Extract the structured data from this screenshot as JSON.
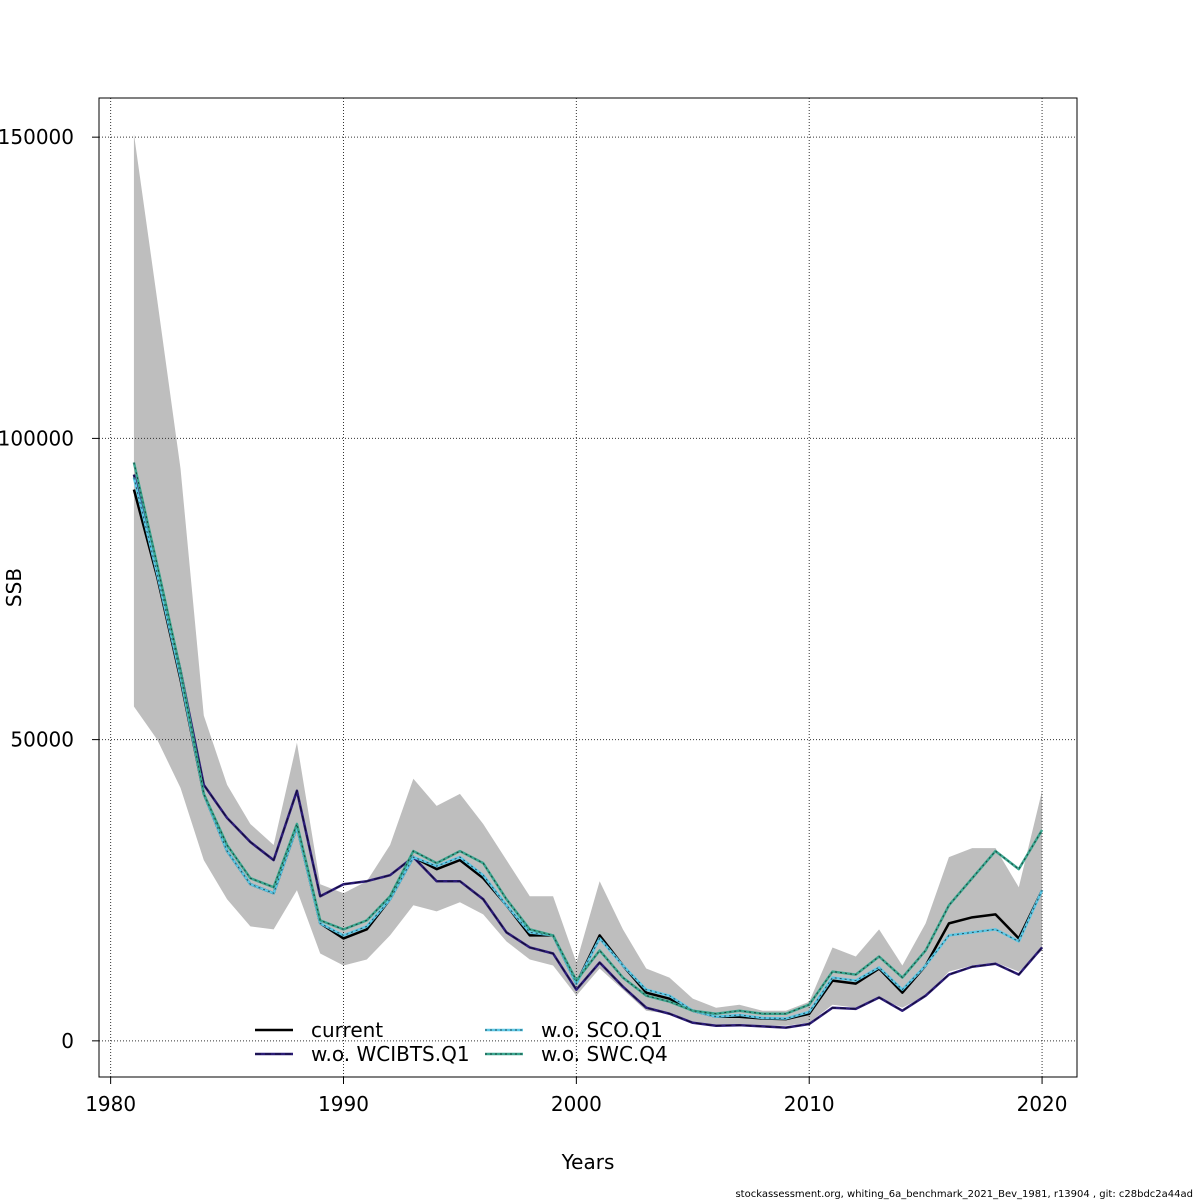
{
  "chart_data": {
    "type": "line",
    "xlabel": "Years",
    "ylabel": "SSB",
    "xlim": [
      1979.5,
      2021.5
    ],
    "ylim": [
      -6000,
      156500
    ],
    "x_ticks": [
      1980,
      1990,
      2000,
      2010,
      2020
    ],
    "x_tick_labels": [
      "1980",
      "1990",
      "2000",
      "2010",
      "2020"
    ],
    "y_ticks": [
      0,
      50000,
      100000,
      150000
    ],
    "y_tick_labels": [
      "0",
      "50000",
      "100000",
      "150000"
    ],
    "grid": true,
    "legend_position": "bottom-left",
    "x": [
      1981,
      1982,
      1983,
      1984,
      1985,
      1986,
      1987,
      1988,
      1989,
      1990,
      1991,
      1992,
      1993,
      1994,
      1995,
      1996,
      1997,
      1998,
      1999,
      2000,
      2001,
      2002,
      2003,
      2004,
      2005,
      2006,
      2007,
      2008,
      2009,
      2010,
      2011,
      2012,
      2013,
      2014,
      2015,
      2016,
      2017,
      2018,
      2019,
      2020
    ],
    "confidence_band": {
      "color": "#bebebe",
      "upper": [
        150500,
        123000,
        95000,
        54000,
        42500,
        36000,
        32500,
        49500,
        26000,
        24500,
        26500,
        32500,
        43500,
        39000,
        41000,
        36000,
        30000,
        24000,
        24000,
        13000,
        26500,
        18500,
        12000,
        10500,
        7000,
        5500,
        6000,
        5000,
        5000,
        6500,
        15500,
        14000,
        18500,
        12500,
        19500,
        30500,
        32000,
        32000,
        25500,
        41500
      ],
      "lower": [
        55500,
        50000,
        42000,
        30000,
        23500,
        19000,
        18500,
        25000,
        14500,
        12500,
        13500,
        17500,
        22500,
        21500,
        23000,
        21000,
        16500,
        13500,
        12500,
        7500,
        12000,
        8500,
        5000,
        4500,
        3000,
        2500,
        2500,
        2500,
        2500,
        3000,
        6000,
        5500,
        7000,
        5500,
        7500,
        11500,
        12500,
        13000,
        11500,
        15000
      ]
    },
    "series": [
      {
        "name": "current",
        "color": "#000000",
        "dash": "solid",
        "values": [
          91500,
          77000,
          60000,
          41000,
          31500,
          26000,
          24500,
          35500,
          19500,
          17000,
          18500,
          23500,
          30500,
          28500,
          30000,
          27000,
          22500,
          17500,
          17500,
          9500,
          17500,
          12500,
          8000,
          7000,
          5000,
          4000,
          4000,
          3700,
          3600,
          4500,
          10000,
          9500,
          12000,
          8000,
          12500,
          19500,
          20500,
          21000,
          17000,
          25000
        ]
      },
      {
        "name": "w.o. WCIBTS.Q1",
        "color": "#2c1c78",
        "dash": "dashed",
        "values": [
          94000,
          78000,
          61500,
          42500,
          37000,
          33000,
          30000,
          41500,
          24000,
          26000,
          26500,
          27500,
          30500,
          26500,
          26500,
          23500,
          18000,
          15500,
          14500,
          8500,
          13000,
          9000,
          5500,
          4500,
          3000,
          2500,
          2600,
          2400,
          2200,
          2800,
          5500,
          5300,
          7200,
          5000,
          7500,
          11000,
          12300,
          12800,
          11000,
          15500
        ]
      },
      {
        "name": "w.o. SCO.Q1",
        "color": "#5bc8e6",
        "dash": "dotted",
        "values": [
          93500,
          77500,
          60500,
          41000,
          31500,
          26000,
          24500,
          35500,
          19500,
          17500,
          19000,
          23500,
          30500,
          29000,
          30500,
          27500,
          22500,
          18000,
          17500,
          9500,
          17000,
          12500,
          8500,
          7500,
          5000,
          4000,
          4300,
          3800,
          3700,
          4800,
          10500,
          10000,
          12200,
          8500,
          12500,
          17500,
          18000,
          18500,
          16500,
          25000
        ]
      },
      {
        "name": "w.o. SWC.Q4",
        "color": "#3aa68f",
        "dash": "dotted",
        "values": [
          96000,
          79000,
          61500,
          41000,
          32500,
          27000,
          25500,
          36000,
          20000,
          18500,
          20000,
          24000,
          31500,
          29500,
          31500,
          29500,
          23500,
          18500,
          17500,
          10000,
          15000,
          10500,
          7500,
          6500,
          5000,
          4500,
          5000,
          4500,
          4500,
          6000,
          11500,
          11000,
          14000,
          10500,
          15000,
          22500,
          27000,
          31500,
          28500,
          35000
        ]
      }
    ]
  },
  "footer": "stockassessment.org, whiting_6a_benchmark_2021_Bev_1981, r13904 , git: c28bdc2a44ad"
}
